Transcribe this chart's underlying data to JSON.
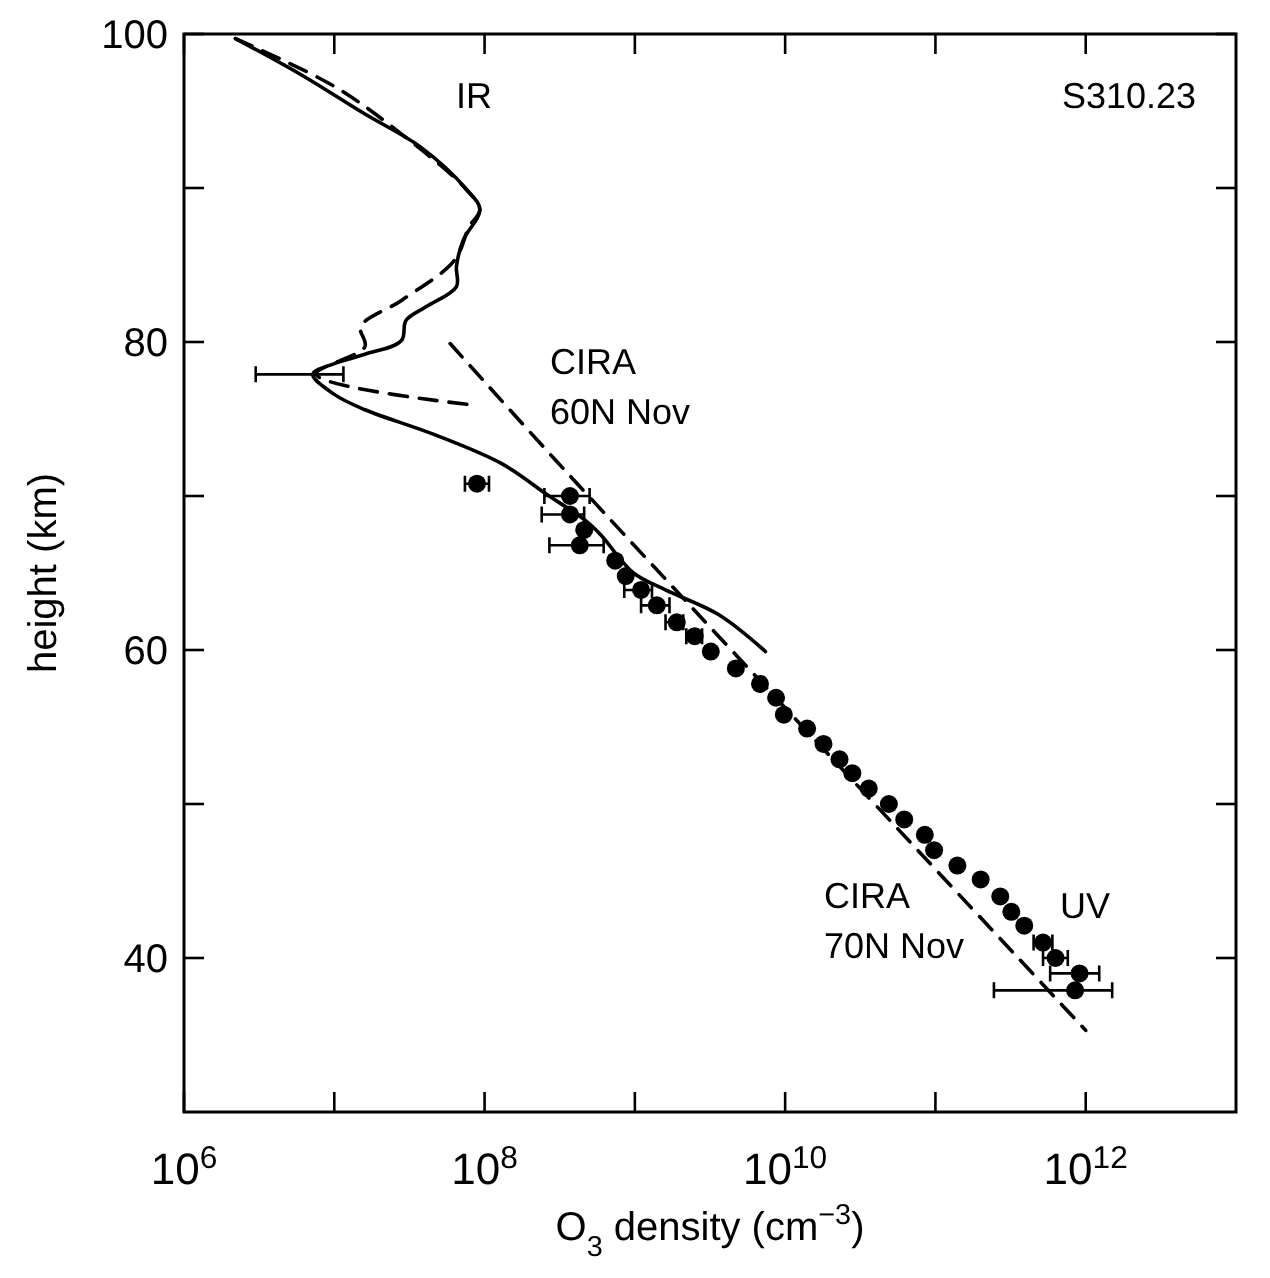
{
  "chart_data": {
    "type": "line",
    "xlabel": "O$_{3}$ density (cm$^{−3}$)",
    "ylabel": "height (km)",
    "log": "x",
    "xlim": [
      1000000.0,
      10000000000000.0
    ],
    "xticks": [
      {
        "value": 1000000.0,
        "label": "10$^{6}$"
      },
      {
        "value": 10000000.0,
        "label": null
      },
      {
        "value": 100000000.0,
        "label": "10$^{8}$"
      },
      {
        "value": 1000000000.0,
        "label": null
      },
      {
        "value": 10000000000.0,
        "label": "10$^{10}$"
      },
      {
        "value": 100000000000.0,
        "label": null
      },
      {
        "value": 1000000000000.0,
        "label": "10$^{12}$"
      }
    ],
    "ylim": [
      30,
      100
    ],
    "yticks": [
      40,
      {
        "value": 50,
        "label": null
      },
      60,
      {
        "value": 70,
        "label": null
      },
      80,
      {
        "value": 90,
        "label": null
      },
      100
    ],
    "grid": false,
    "series": [
      {
        "color": "#000000",
        "line_style": "solid",
        "marker": "none",
        "x": [
          2200000.0,
          5900000.0,
          16000000.0,
          37000000.0,
          76000000.0,
          93000000.0,
          72000000.0,
          65000000.0,
          65000000.0,
          41000000.0,
          30000000.0,
          28000000.0,
          16000000.0,
          10000000.0,
          7200000.0,
          10000000.0,
          16000000.0,
          46000000.0,
          130000000.0,
          260000000.0,
          470000000.0,
          590000000.0,
          980000000.0,
          1600000000.0,
          3600000000.0,
          7400000000.0
        ],
        "values": [
          99.7,
          97.4,
          94.8,
          92.7,
          89.9,
          88.6,
          86.6,
          84.9,
          83.6,
          82.3,
          81.4,
          80.1,
          79.2,
          78.6,
          77.9,
          76.6,
          75.6,
          74.0,
          72.1,
          70.1,
          68.4,
          67.5,
          65.0,
          63.9,
          62.3,
          59.9
        ],
        "xerrors": [
          null,
          null,
          null,
          null,
          null,
          null,
          null,
          null,
          null,
          null,
          null,
          null,
          null,
          null,
          [
            3000000.0,
            11500000.0
          ],
          null,
          null,
          null,
          null,
          null,
          null,
          null,
          null,
          null,
          null,
          null
        ]
      },
      {
        "color": "#000000",
        "line_style": "dashed",
        "marker": "none",
        "x": [
          2200000.0,
          10000000.0,
          28000000.0,
          74000000.0,
          93000000.0,
          79000000.0,
          63000000.0,
          28000000.0,
          15000000.0,
          16000000.0,
          7600000.0,
          85000000.0
        ],
        "values": [
          99.7,
          96.6,
          93.5,
          90.0,
          88.6,
          87.5,
          85.3,
          82.7,
          81.0,
          79.7,
          77.9,
          75.9
        ]
      },
      {
        "color": "#000000",
        "line_style": "dashed",
        "marker": "none",
        "x": [
          59000000.0,
          340000000.0,
          1000000000000.0
        ],
        "values": [
          79.9,
          71.7,
          35.3
        ]
      },
      {
        "type": "scatter",
        "color": "#000000",
        "marker": "circle",
        "x": [
          89000000.0,
          370000000.0,
          370000000.0,
          460000000.0,
          430000000.0,
          740000000.0,
          870000000.0,
          1100000000.0,
          1400000000.0,
          1900000000.0,
          2500000000.0,
          3200000000.0,
          4700000000.0,
          6800000000.0,
          8700000000.0,
          9800000000.0,
          14000000000.0,
          18000000000.0,
          23000000000.0,
          28000000000.0,
          36000000000.0,
          49000000000.0,
          62000000000.0,
          85000000000.0,
          98000000000.0,
          140000000000.0,
          200000000000.0,
          270000000000.0,
          320000000000.0,
          390000000000.0,
          520000000000.0,
          630000000000.0,
          910000000000.0,
          850000000000.0
        ],
        "values": [
          70.8,
          70.0,
          68.8,
          67.8,
          66.8,
          65.8,
          64.8,
          63.9,
          62.9,
          61.8,
          60.9,
          59.9,
          58.8,
          57.8,
          56.9,
          55.8,
          54.9,
          53.9,
          52.9,
          52.0,
          51.0,
          50.0,
          49.0,
          48.0,
          47.0,
          46.0,
          45.1,
          44.0,
          43.0,
          42.1,
          41.0,
          40.0,
          39.0,
          37.9
        ],
        "xerrors": [
          [
            74000000.0,
            107000000.0
          ],
          [
            250000000.0,
            500000000.0
          ],
          [
            240000000.0,
            460000000.0
          ],
          null,
          [
            270000000.0,
            620000000.0
          ],
          null,
          null,
          [
            850000000.0,
            1300000000.0
          ],
          [
            1100000000.0,
            1700000000.0
          ],
          [
            1600000000.0,
            2100000000.0
          ],
          [
            2200000000.0,
            2800000000.0
          ],
          null,
          null,
          null,
          null,
          null,
          null,
          null,
          null,
          null,
          null,
          null,
          null,
          null,
          null,
          null,
          null,
          null,
          null,
          null,
          [
            450000000000.0,
            600000000000.0
          ],
          [
            520000000000.0,
            760000000000.0
          ],
          [
            580000000000.0,
            1230000000000.0
          ],
          [
            245000000000.0,
            1500000000000.0
          ]
        ]
      }
    ],
    "annotations": [
      "S310.23",
      "IR",
      "CIRA\n60N Nov",
      "CIRA\n70N Nov",
      "UV"
    ]
  }
}
